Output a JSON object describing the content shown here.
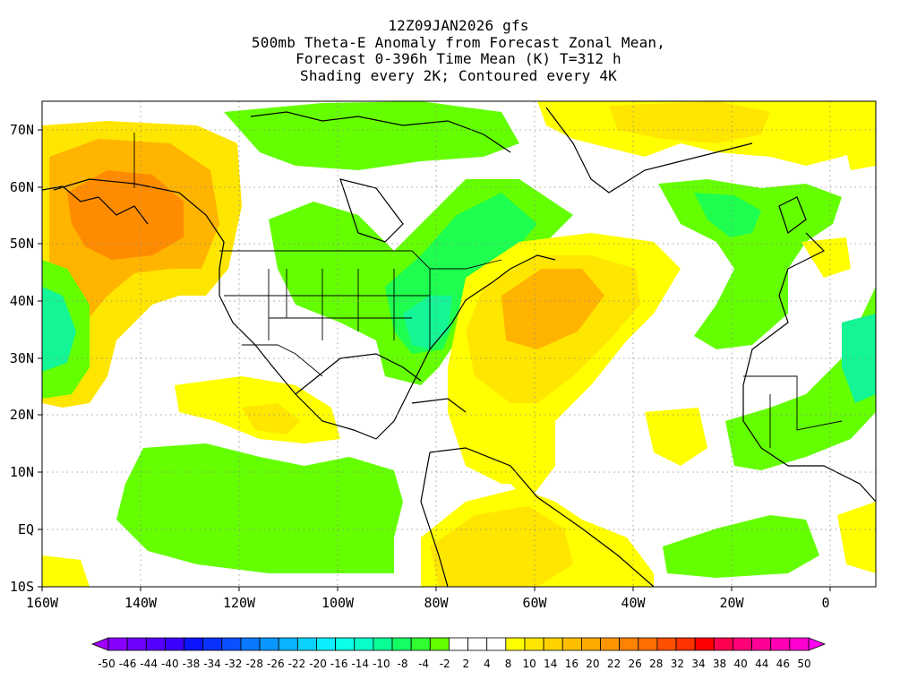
{
  "titles": [
    "12Z09JAN2026 gfs",
    "500mb Theta-E Anomaly from Forecast Zonal Mean,",
    "Forecast 0-396h Time Mean (K) T=312 h",
    "Shading every 2K; Contoured every 4K"
  ],
  "map": {
    "lat_labels": [
      "70N",
      "60N",
      "50N",
      "40N",
      "30N",
      "20N",
      "10N",
      "EQ",
      "10S"
    ],
    "lon_labels": [
      "160W",
      "140W",
      "120W",
      "100W",
      "80W",
      "60W",
      "40W",
      "20W",
      "0"
    ],
    "lat_range": [
      "10S",
      "75N"
    ],
    "lon_range": [
      "160W",
      "10E"
    ],
    "gridlines": "dotted",
    "projection": "cylindrical"
  },
  "colorbar": {
    "labels": [
      "-50",
      "-46",
      "-44",
      "-40",
      "-38",
      "-34",
      "-32",
      "-28",
      "-26",
      "-22",
      "-20",
      "-16",
      "-14",
      "-10",
      "-8",
      "-4",
      "-2",
      "2",
      "4",
      "8",
      "10",
      "14",
      "16",
      "20",
      "22",
      "26",
      "28",
      "32",
      "34",
      "38",
      "40",
      "44",
      "46",
      "50"
    ],
    "colors": [
      "#a000ff",
      "#8700ff",
      "#6e00ff",
      "#5500ff",
      "#3c00ff",
      "#0a14ff",
      "#0a32ff",
      "#0a50ff",
      "#0a78ff",
      "#0a96ff",
      "#0ab4ff",
      "#0ad2ff",
      "#0aeeff",
      "#0affe6",
      "#0affc8",
      "#0aff96",
      "#14ff64",
      "#32ff32",
      "#64ff00",
      "#ffffff",
      "#ffffff",
      "#ffffff",
      "#ffff00",
      "#ffe600",
      "#ffd200",
      "#ffbe00",
      "#ffaa00",
      "#ff9600",
      "#ff8200",
      "#ff6e00",
      "#ff5000",
      "#ff3200",
      "#ff0000",
      "#ff0050",
      "#ff0078",
      "#ff0096",
      "#ff00b4",
      "#ff00d2",
      "#ff00f0"
    ]
  },
  "field_colors": {
    "strong_warm": "#ff8c00",
    "warm": "#ffb400",
    "mild_warm": "#ffe600",
    "weak_warm": "#ffff00",
    "weak_cold": "#64ff00",
    "cold": "#1eff50",
    "strong_cold": "#14f596"
  }
}
